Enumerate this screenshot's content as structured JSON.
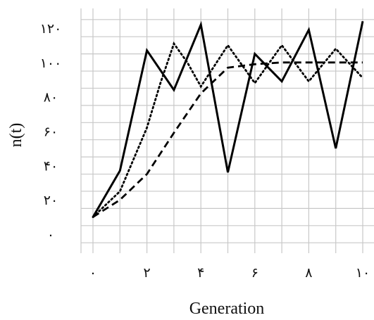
{
  "chart_data": {
    "type": "line",
    "xlabel": "Generation",
    "ylabel": "n(t)",
    "xlim": [
      0,
      10
    ],
    "ylim": [
      0,
      120
    ],
    "grid": true,
    "x_ticks": [
      {
        "value": 0,
        "label": "۰"
      },
      {
        "value": 2,
        "label": "۲"
      },
      {
        "value": 4,
        "label": "۴"
      },
      {
        "value": 6,
        "label": "۶"
      },
      {
        "value": 8,
        "label": "۸"
      },
      {
        "value": 10,
        "label": "۱۰"
      }
    ],
    "y_ticks": [
      {
        "value": 0,
        "label": "۰"
      },
      {
        "value": 20,
        "label": "۲۰"
      },
      {
        "value": 40,
        "label": "۴۰"
      },
      {
        "value": 60,
        "label": "۶۰"
      },
      {
        "value": 80,
        "label": "۸۰"
      },
      {
        "value": 100,
        "label": "۱۰۰"
      },
      {
        "value": 120,
        "label": "۱۲۰"
      }
    ],
    "series": [
      {
        "style": "solid",
        "color": "#000000",
        "x": [
          0,
          1,
          2,
          3,
          4,
          5,
          6,
          7,
          8,
          9,
          10
        ],
        "values": [
          10,
          37,
          107,
          84,
          122,
          36,
          105,
          89,
          119,
          50,
          124
        ]
      },
      {
        "style": "dotted",
        "color": "#000000",
        "x": [
          0,
          1,
          2,
          2.5,
          3,
          3.5,
          4,
          5,
          6,
          7,
          8,
          9,
          10
        ],
        "values": [
          10,
          25,
          62,
          88,
          111,
          100,
          86,
          110,
          88,
          110,
          89,
          108,
          91
        ]
      },
      {
        "style": "dashed",
        "color": "#000000",
        "x": [
          0,
          1,
          2,
          3,
          4,
          5,
          6,
          7,
          8,
          9,
          10
        ],
        "values": [
          10,
          20,
          35,
          59,
          82,
          97,
          99,
          100,
          100,
          100,
          100
        ]
      }
    ]
  }
}
